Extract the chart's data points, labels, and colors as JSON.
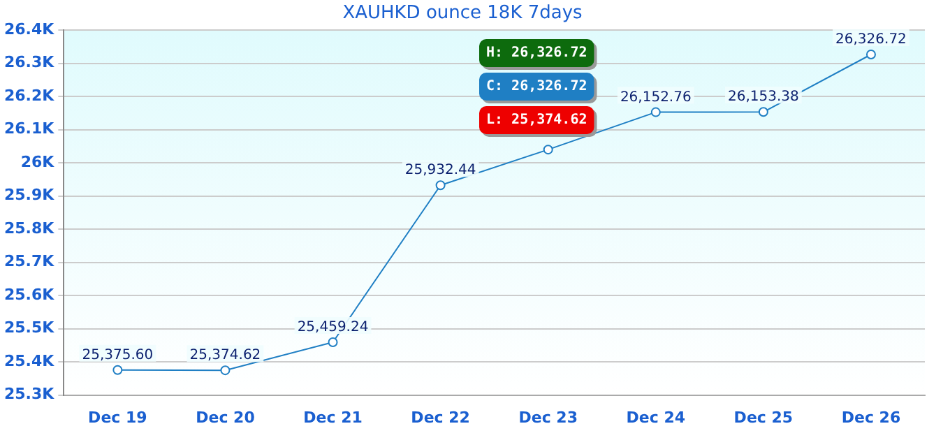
{
  "chart_data": {
    "type": "line",
    "title": "XAUHKD ounce 18K 7days",
    "categories": [
      "Dec 19",
      "Dec 20",
      "Dec 21",
      "Dec 22",
      "Dec 23",
      "Dec 24",
      "Dec 25",
      "Dec 26"
    ],
    "series": [
      {
        "color": "#1f7fc4",
        "values": [
          25375.6,
          25374.62,
          25459.24,
          25932.44,
          26040,
          26152.76,
          26153.38,
          26326.72
        ],
        "value_labels": [
          "25,375.60",
          "25,374.62",
          "25,459.24",
          "25,932.44",
          null,
          "26,152.76",
          "26,153.38",
          "26,326.72"
        ]
      }
    ],
    "ylim": [
      25300,
      26400
    ],
    "yticks": [
      {
        "value": 25300,
        "label": "25.3K"
      },
      {
        "value": 25400,
        "label": "25.4K"
      },
      {
        "value": 25500,
        "label": "25.5K"
      },
      {
        "value": 25600,
        "label": "25.6K"
      },
      {
        "value": 25700,
        "label": "25.7K"
      },
      {
        "value": 25800,
        "label": "25.8K"
      },
      {
        "value": 25900,
        "label": "25.9K"
      },
      {
        "value": 26000,
        "label": "26K"
      },
      {
        "value": 26100,
        "label": "26.1K"
      },
      {
        "value": 26200,
        "label": "26.2K"
      },
      {
        "value": 26300,
        "label": "26.3K"
      },
      {
        "value": 26400,
        "label": "26.4K"
      }
    ],
    "annotations": [
      "H: 26,326.72",
      "C: 26,326.72",
      "L: 25,374.62"
    ],
    "grid": "y",
    "marker": "circle",
    "line_style": "solid",
    "legend": false
  }
}
